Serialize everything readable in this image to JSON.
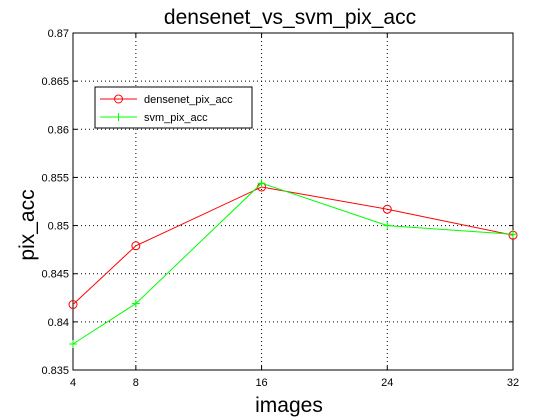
{
  "chart_data": {
    "type": "line",
    "title": "densenet_vs_svm_pix_acc",
    "xlabel": "images",
    "ylabel": "pix_acc",
    "x": [
      4,
      8,
      16,
      24,
      32
    ],
    "x_tick_labels": [
      "4",
      "8",
      "16",
      "24",
      "32"
    ],
    "ylim": [
      0.835,
      0.87
    ],
    "y_ticks": [
      0.835,
      0.84,
      0.845,
      0.85,
      0.855,
      0.86,
      0.865,
      0.87
    ],
    "y_tick_labels": [
      "0.835",
      "0.84",
      "0.845",
      "0.85",
      "0.855",
      "0.86",
      "0.865",
      "0.87"
    ],
    "grid": true,
    "legend_position": "top-left",
    "series": [
      {
        "name": "densenet_pix_acc",
        "color": "#ff0000",
        "marker": "circle",
        "values": [
          0.8418,
          0.8479,
          0.854,
          0.8517,
          0.849
        ]
      },
      {
        "name": "svm_pix_acc",
        "color": "#00ff00",
        "marker": "plus",
        "values": [
          0.8377,
          0.8419,
          0.8544,
          0.85,
          0.8491
        ]
      }
    ]
  }
}
